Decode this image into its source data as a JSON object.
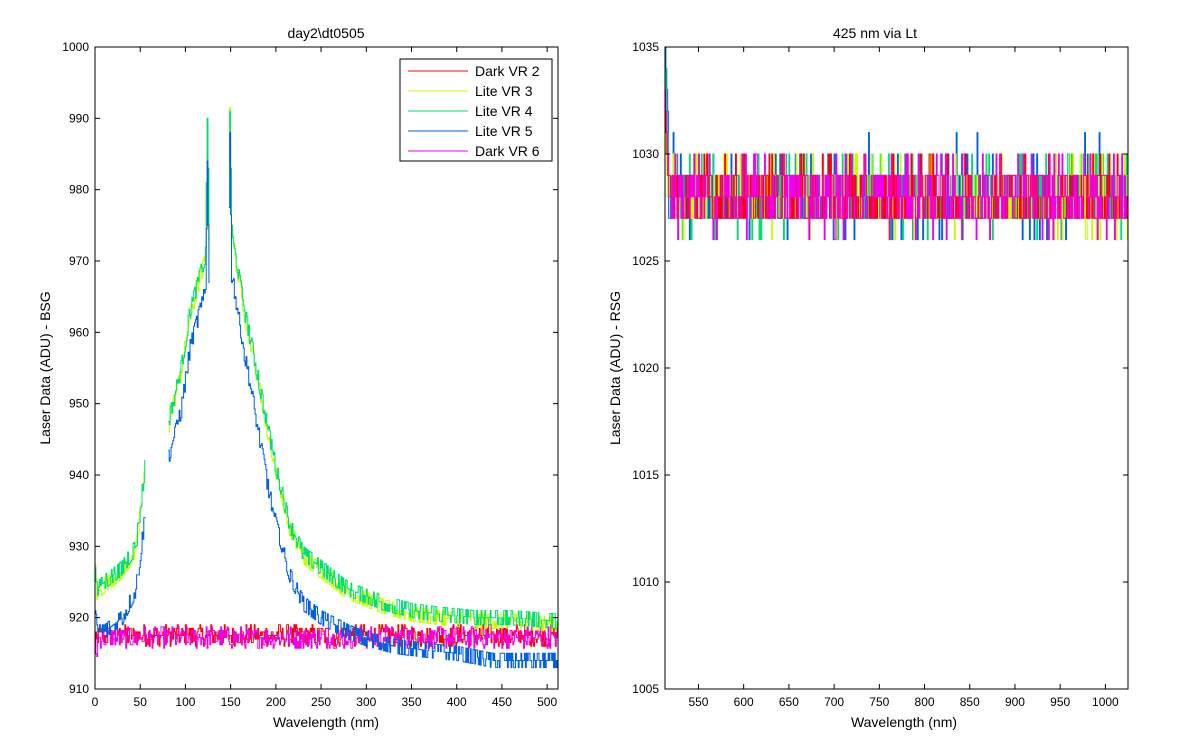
{
  "chart_data": [
    {
      "type": "line",
      "title": "day2\\dt0505",
      "xlabel": "Wavelength (nm)",
      "ylabel": "Laser Data (ADU) - BSG",
      "xlim": [
        0,
        512
      ],
      "ylim": [
        910,
        1000
      ],
      "xticks": [
        0,
        50,
        100,
        150,
        200,
        250,
        300,
        350,
        400,
        450,
        500
      ],
      "yticks": [
        910,
        920,
        930,
        940,
        950,
        960,
        970,
        980,
        990,
        1000
      ],
      "grid": false,
      "legend_position": "top-right",
      "series": [
        {
          "name": "Dark VR 2",
          "color": "#ff0000",
          "kind": "flat",
          "base": 917.5,
          "noise": 1.5,
          "start": 915
        },
        {
          "name": "Lite VR 3",
          "color": "#c8ff00",
          "kind": "peak",
          "offset": 0.5,
          "noise": 1.2
        },
        {
          "name": "Lite VR 4",
          "color": "#00e070",
          "kind": "peak",
          "offset": 1.0,
          "noise": 1.4
        },
        {
          "name": "Lite VR 5",
          "color": "#0060e0",
          "kind": "peak_low",
          "offset": -2.0,
          "noise": 1.4
        },
        {
          "name": "Dark VR 6",
          "color": "#ee00ee",
          "kind": "flat",
          "base": 917.2,
          "noise": 1.5,
          "start": 914
        }
      ],
      "peak_profile": {
        "x": [
          0,
          2,
          10,
          30,
          45,
          55,
          57,
          78,
          80,
          95,
          105,
          118,
          122,
          124,
          126,
          128,
          145,
          147,
          149,
          151,
          155,
          165,
          175,
          190,
          200,
          215,
          230,
          250,
          280,
          300,
          320,
          350,
          380,
          420,
          460,
          512
        ],
        "y": [
          927,
          923,
          924,
          926,
          929,
          940,
          null,
          null,
          946,
          954,
          962,
          968,
          970,
          990,
          972,
          null,
          null,
          975,
          991,
          973,
          970,
          962,
          956,
          946,
          940,
          932,
          928,
          926,
          923,
          922,
          921,
          920,
          919.5,
          919,
          919,
          918.5
        ]
      },
      "peak_low_profile": {
        "x": [
          0,
          2,
          10,
          30,
          45,
          55,
          57,
          78,
          80,
          95,
          105,
          118,
          122,
          124,
          126,
          128,
          145,
          147,
          149,
          151,
          155,
          165,
          175,
          190,
          200,
          215,
          230,
          250,
          280,
          300,
          330,
          360,
          400,
          440,
          470,
          512
        ],
        "y": [
          923,
          920,
          920,
          922,
          926,
          936,
          null,
          null,
          944,
          951,
          960,
          966,
          968,
          987,
          969,
          null,
          null,
          970,
          989,
          970,
          967,
          959,
          952,
          941,
          935,
          928,
          924,
          922,
          920,
          919,
          918,
          917.5,
          917,
          916,
          916,
          916
        ]
      }
    },
    {
      "type": "line",
      "title": "425 nm via Lt",
      "xlabel": "Wavelength (nm)",
      "ylabel": "Laser Data (ADU) - RSG",
      "xlim": [
        513,
        1025
      ],
      "ylim": [
        1005,
        1035
      ],
      "xticks": [
        550,
        600,
        650,
        700,
        750,
        800,
        850,
        900,
        950,
        1000
      ],
      "yticks": [
        1005,
        1010,
        1015,
        1020,
        1025,
        1030,
        1035
      ],
      "grid": false,
      "series": [
        {
          "name": "Dark VR 2",
          "color": "#ff0000",
          "levels": [
            1027,
            1028,
            1029,
            1030
          ],
          "start_spike": 1032
        },
        {
          "name": "Lite VR 3",
          "color": "#c8ff00",
          "levels": [
            1026,
            1027,
            1028,
            1029,
            1030
          ],
          "start_spike": 1031
        },
        {
          "name": "Lite VR 4",
          "color": "#00e070",
          "levels": [
            1026,
            1027,
            1028,
            1029,
            1030
          ],
          "start_spike": 1034
        },
        {
          "name": "Lite VR 5",
          "color": "#0060e0",
          "levels": [
            1026,
            1027,
            1028,
            1029,
            1030,
            1031
          ],
          "start_spike": 1035
        },
        {
          "name": "Dark VR 6",
          "color": "#ee00ee",
          "levels": [
            1026,
            1027,
            1028,
            1029,
            1030
          ],
          "start_spike": 1033
        }
      ]
    }
  ]
}
